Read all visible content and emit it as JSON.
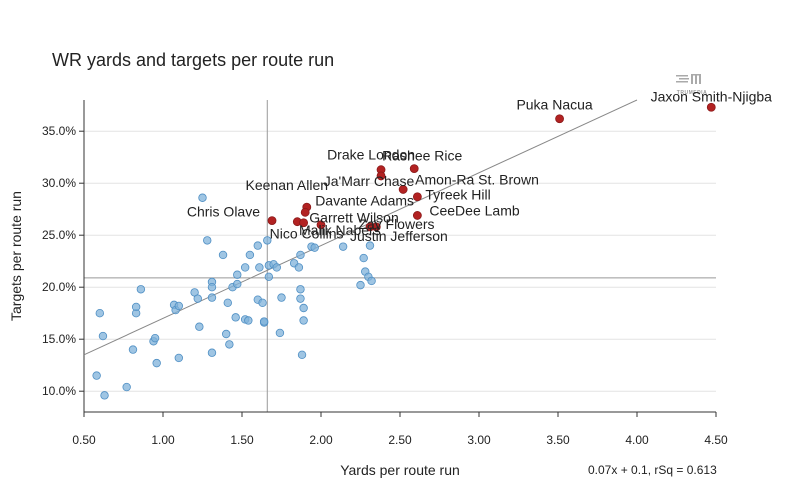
{
  "chart_data": {
    "type": "scatter",
    "title": "WR yards and targets per route run",
    "xlabel": "Yards per route run",
    "ylabel": "Targets per route run",
    "xlim": [
      0.5,
      4.5
    ],
    "ylim": [
      0.08,
      0.38
    ],
    "x_ticks": [
      0.5,
      1.0,
      1.5,
      2.0,
      2.5,
      3.0,
      3.5,
      4.0,
      4.5
    ],
    "x_tick_labels": [
      "0.50",
      "1.00",
      "1.50",
      "2.00",
      "2.50",
      "3.00",
      "3.50",
      "4.00",
      "4.50"
    ],
    "y_ticks": [
      0.1,
      0.15,
      0.2,
      0.25,
      0.3,
      0.35
    ],
    "y_tick_labels": [
      "10.0%",
      "15.0%",
      "20.0%",
      "25.0%",
      "30.0%",
      "35.0%"
    ],
    "reference_lines": {
      "x_mean": 1.66,
      "y_mean": 0.209
    },
    "regression": {
      "slope": 0.07,
      "intercept": 0.1,
      "label": "0.07x + 0.1, rSq = 0.613"
    },
    "logo_text": "TRUMEDIA",
    "colors": {
      "highlight": "#b22222",
      "other": "#7fb1d9",
      "other_stroke": "#4f8fc4",
      "ref_line": "#999999",
      "reg_line": "#888888"
    },
    "highlighted": [
      {
        "name": "Jaxon Smith-Njigba",
        "x": 4.47,
        "y": 0.373
      },
      {
        "name": "Puka Nacua",
        "x": 3.51,
        "y": 0.362
      },
      {
        "name": "Drake London",
        "x": 2.38,
        "y": 0.313
      },
      {
        "name": "Rashee Rice",
        "x": 2.59,
        "y": 0.314
      },
      {
        "name": "Ja'Marr Chase",
        "x": 2.38,
        "y": 0.307
      },
      {
        "name": "Amon-Ra St. Brown",
        "x": 2.52,
        "y": 0.294
      },
      {
        "name": "Keenan Allen",
        "x": 1.91,
        "y": 0.277
      },
      {
        "name": "Tyreek Hill",
        "x": 2.61,
        "y": 0.287
      },
      {
        "name": "Davante Adams",
        "x": 1.9,
        "y": 0.272
      },
      {
        "name": "CeeDee Lamb",
        "x": 2.61,
        "y": 0.269
      },
      {
        "name": "Chris Olave",
        "x": 1.69,
        "y": 0.264
      },
      {
        "name": "Garrett Wilson",
        "x": 1.85,
        "y": 0.263
      },
      {
        "name": "Malik Nabers",
        "x": 2.0,
        "y": 0.26
      },
      {
        "name": "Zay Flowers",
        "x": 2.35,
        "y": 0.258
      },
      {
        "name": "Nico Collins",
        "x": 1.89,
        "y": 0.262
      },
      {
        "name": "Justin Jefferson",
        "x": 2.31,
        "y": 0.258
      }
    ],
    "others": [
      [
        0.58,
        0.115
      ],
      [
        0.6,
        0.175
      ],
      [
        0.62,
        0.153
      ],
      [
        0.63,
        0.096
      ],
      [
        0.77,
        0.104
      ],
      [
        0.81,
        0.14
      ],
      [
        0.83,
        0.175
      ],
      [
        0.83,
        0.181
      ],
      [
        0.86,
        0.198
      ],
      [
        0.94,
        0.148
      ],
      [
        0.95,
        0.151
      ],
      [
        0.96,
        0.127
      ],
      [
        1.07,
        0.183
      ],
      [
        1.08,
        0.178
      ],
      [
        1.1,
        0.182
      ],
      [
        1.1,
        0.132
      ],
      [
        1.2,
        0.195
      ],
      [
        1.22,
        0.189
      ],
      [
        1.23,
        0.162
      ],
      [
        1.25,
        0.286
      ],
      [
        1.28,
        0.245
      ],
      [
        1.31,
        0.205
      ],
      [
        1.31,
        0.2
      ],
      [
        1.31,
        0.19
      ],
      [
        1.31,
        0.137
      ],
      [
        1.38,
        0.231
      ],
      [
        1.4,
        0.155
      ],
      [
        1.41,
        0.185
      ],
      [
        1.42,
        0.145
      ],
      [
        1.44,
        0.2
      ],
      [
        1.46,
        0.171
      ],
      [
        1.47,
        0.212
      ],
      [
        1.47,
        0.203
      ],
      [
        1.52,
        0.219
      ],
      [
        1.52,
        0.169
      ],
      [
        1.54,
        0.168
      ],
      [
        1.55,
        0.231
      ],
      [
        1.6,
        0.24
      ],
      [
        1.6,
        0.188
      ],
      [
        1.61,
        0.219
      ],
      [
        1.63,
        0.185
      ],
      [
        1.64,
        0.166
      ],
      [
        1.64,
        0.167
      ],
      [
        1.66,
        0.245
      ],
      [
        1.67,
        0.221
      ],
      [
        1.67,
        0.21
      ],
      [
        1.7,
        0.222
      ],
      [
        1.72,
        0.219
      ],
      [
        1.74,
        0.156
      ],
      [
        1.75,
        0.19
      ],
      [
        1.83,
        0.223
      ],
      [
        1.86,
        0.219
      ],
      [
        1.87,
        0.231
      ],
      [
        1.87,
        0.198
      ],
      [
        1.87,
        0.189
      ],
      [
        1.88,
        0.135
      ],
      [
        1.89,
        0.18
      ],
      [
        1.89,
        0.168
      ],
      [
        1.94,
        0.239
      ],
      [
        1.96,
        0.238
      ],
      [
        2.14,
        0.239
      ],
      [
        2.25,
        0.202
      ],
      [
        2.27,
        0.228
      ],
      [
        2.28,
        0.215
      ],
      [
        2.3,
        0.21
      ],
      [
        2.31,
        0.24
      ],
      [
        2.32,
        0.206
      ]
    ]
  }
}
